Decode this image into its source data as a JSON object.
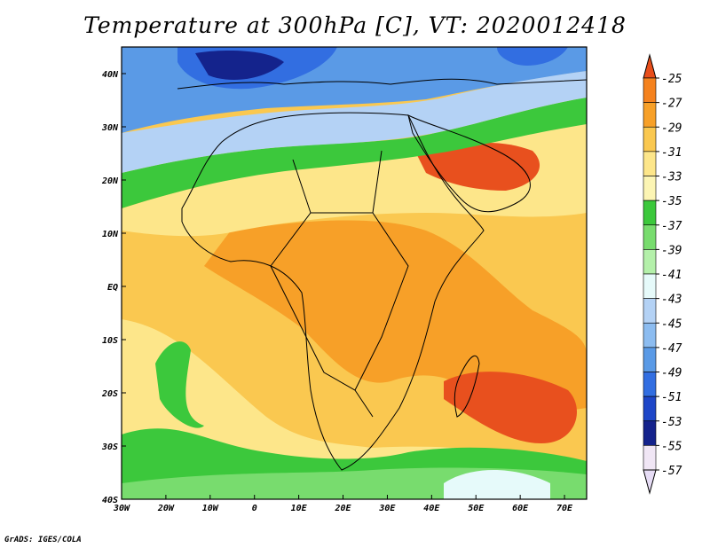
{
  "title": "Temperature at 300hPa [C], VT: 2020012418",
  "credit": "GrADS: IGES/COLA",
  "map": {
    "lon_range": [
      -30,
      75
    ],
    "lat_range": [
      -40,
      45
    ],
    "lon_ticks": [
      {
        "value": -30,
        "label": "30W"
      },
      {
        "value": -20,
        "label": "20W"
      },
      {
        "value": -10,
        "label": "10W"
      },
      {
        "value": 0,
        "label": "0"
      },
      {
        "value": 10,
        "label": "10E"
      },
      {
        "value": 20,
        "label": "20E"
      },
      {
        "value": 30,
        "label": "30E"
      },
      {
        "value": 40,
        "label": "40E"
      },
      {
        "value": 50,
        "label": "50E"
      },
      {
        "value": 60,
        "label": "60E"
      },
      {
        "value": 70,
        "label": "70E"
      }
    ],
    "lat_ticks": [
      {
        "value": 40,
        "label": "40N"
      },
      {
        "value": 30,
        "label": "30N"
      },
      {
        "value": 20,
        "label": "20N"
      },
      {
        "value": 10,
        "label": "10N"
      },
      {
        "value": 0,
        "label": "EQ"
      },
      {
        "value": -10,
        "label": "10S"
      },
      {
        "value": -20,
        "label": "20S"
      },
      {
        "value": -30,
        "label": "30S"
      },
      {
        "value": -40,
        "label": "40S"
      }
    ]
  },
  "colorbar": {
    "labels": [
      "-25",
      "-27",
      "-29",
      "-31",
      "-33",
      "-35",
      "-37",
      "-39",
      "-41",
      "-43",
      "-45",
      "-47",
      "-49",
      "-51",
      "-53",
      "-55",
      "-57"
    ],
    "colors": [
      "#e8501e",
      "#f5821e",
      "#f7a028",
      "#fac850",
      "#fde68a",
      "#fcf5b4",
      "#3cc83c",
      "#78dc6e",
      "#b4f0aa",
      "#e6fafa",
      "#b4d2f5",
      "#8cbcf0",
      "#5a9ae6",
      "#326ee1",
      "#1e46c8",
      "#14238c",
      "#f0e6f5"
    ],
    "top_triangle_color": "#e84e1b",
    "bottom_triangle_color": "#e6dcf5"
  }
}
